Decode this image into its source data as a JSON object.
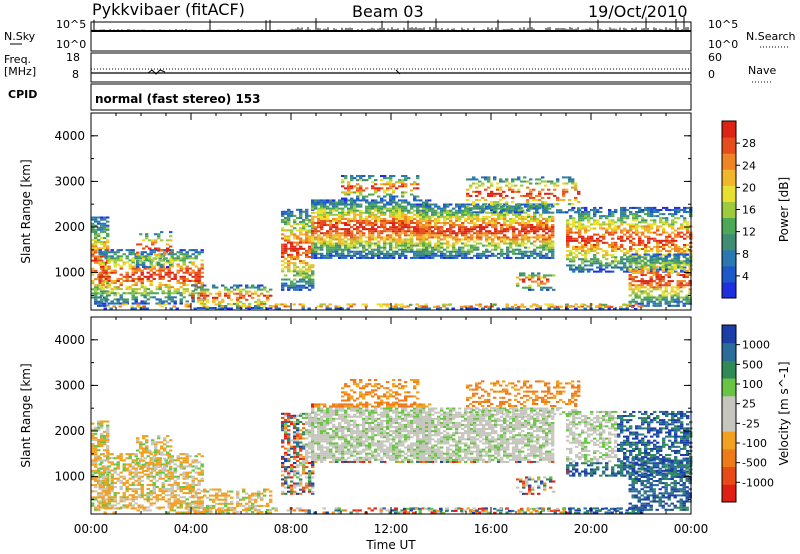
{
  "header": {
    "station": "Pykkvibaer (fitACF)",
    "beam": "Beam 03",
    "date": "19/Oct/2010"
  },
  "strip_left": {
    "nsky_label": "N.Sky",
    "nsky_top": "10^5",
    "nsky_bottom": "10^0",
    "freq_label": "Freq.",
    "freq_unit": "[MHz]",
    "freq_top": "18",
    "freq_bottom": "8",
    "cpid_label": "CPID"
  },
  "strip_right": {
    "nsearch_top": "10^5",
    "nsearch_bottom": "10^0",
    "nsearch_label": "N.Search",
    "nave_top": "60",
    "nave_bottom": "0",
    "nave_label": "Nave"
  },
  "cpid_text": "normal (fast stereo) 153",
  "chart_data": [
    {
      "type": "heatmap",
      "name": "power",
      "ylabel": "Slant Range [km]",
      "ylim": [
        180,
        4500
      ],
      "yticks": [
        "1000",
        "2000",
        "3000",
        "4000"
      ],
      "xlim": [
        "00:00",
        "24:00"
      ],
      "colorbar": {
        "label": "Power [dB]",
        "ticks": [
          "4",
          "8",
          "12",
          "16",
          "20",
          "24",
          "28"
        ],
        "colors": [
          "#1f2fe0",
          "#1c58c8",
          "#2a78b0",
          "#3f8e74",
          "#4ca857",
          "#9ecb3e",
          "#e8e030",
          "#f2b62a",
          "#ee8424",
          "#e64d1c",
          "#dd2414"
        ]
      }
    },
    {
      "type": "heatmap",
      "name": "velocity",
      "ylabel": "Slant Range [km]",
      "ylim": [
        180,
        4500
      ],
      "yticks": [
        "1000",
        "2000",
        "3000",
        "4000"
      ],
      "xlabel": "Time UT",
      "xticks": [
        "00:00",
        "04:00",
        "08:00",
        "12:00",
        "16:00",
        "20:00",
        "00:00"
      ],
      "colorbar": {
        "label": "Velocity [m s^-1]",
        "ticks": [
          "1000",
          "500",
          "100",
          "25",
          "-25",
          "-100",
          "-500",
          "-1000"
        ],
        "colors": [
          "#1c3ea8",
          "#2a6c9a",
          "#2f8a58",
          "#6ac444",
          "#c6c6be",
          "#c6c6be",
          "#f2a020",
          "#ee7a1a",
          "#e84a18",
          "#e01e14"
        ]
      }
    }
  ]
}
